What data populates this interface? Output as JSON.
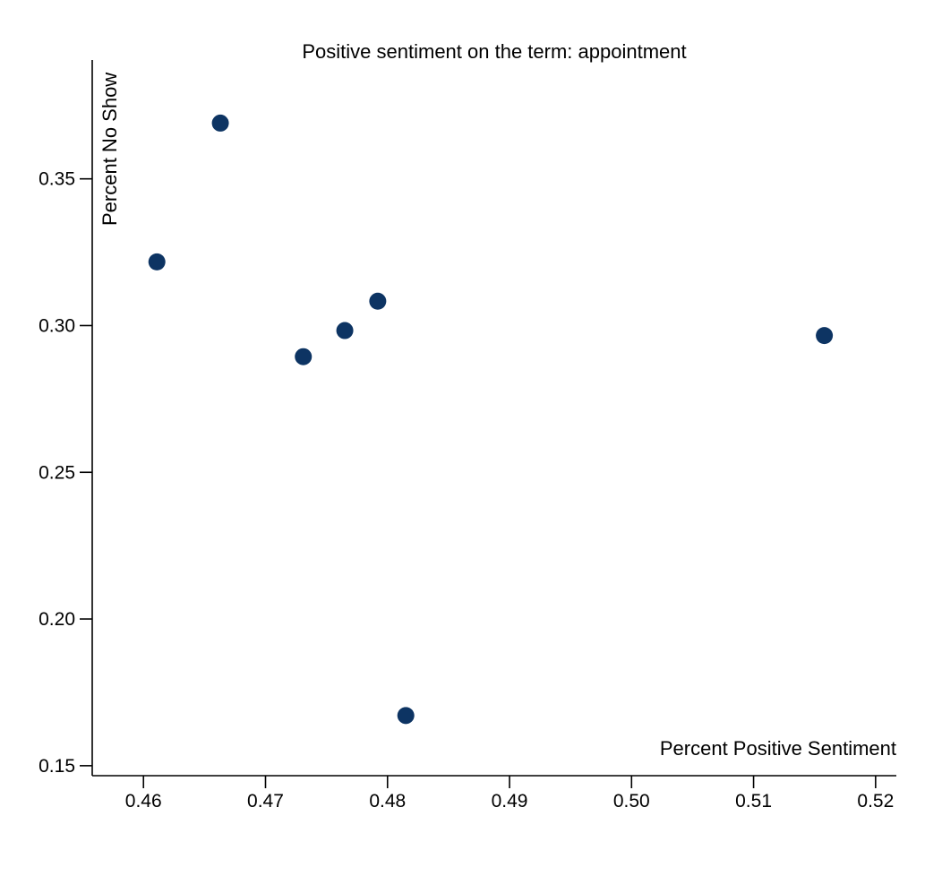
{
  "chart_data": {
    "type": "scatter",
    "title": "Positive sentiment on the term: appointment",
    "xlabel": "Percent Positive Sentiment",
    "ylabel": "Percent No Show",
    "xlim": [
      0.4558,
      0.5217
    ],
    "ylim": [
      0.1466,
      0.3905
    ],
    "x_ticks": [
      "0.46",
      "0.47",
      "0.48",
      "0.49",
      "0.50",
      "0.51",
      "0.52"
    ],
    "y_ticks": [
      "0.15",
      "0.20",
      "0.25",
      "0.30",
      "0.35"
    ],
    "grid": false,
    "legend": "none",
    "marker_color": "#0d3463",
    "points": [
      {
        "x": 0.4611,
        "y": 0.3217
      },
      {
        "x": 0.4663,
        "y": 0.369
      },
      {
        "x": 0.4731,
        "y": 0.2894
      },
      {
        "x": 0.4765,
        "y": 0.2983
      },
      {
        "x": 0.4792,
        "y": 0.3083
      },
      {
        "x": 0.4815,
        "y": 0.1671
      },
      {
        "x": 0.5158,
        "y": 0.2966
      }
    ]
  }
}
